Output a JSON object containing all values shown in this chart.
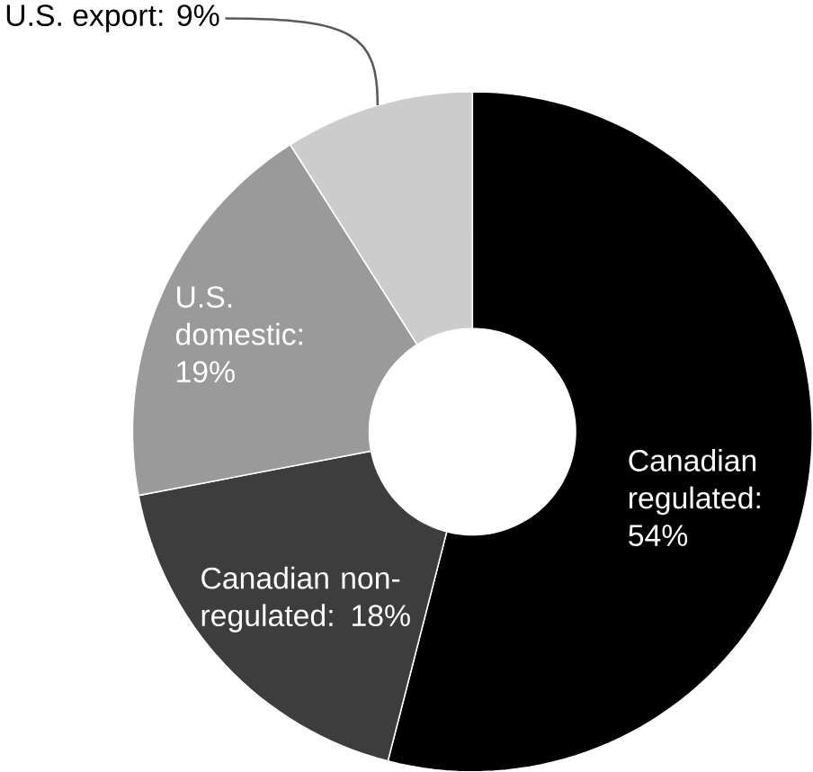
{
  "chart_data": {
    "type": "donut",
    "categories": [
      "Canadian regulated: 54%",
      "Canadian non-regulated: 18%",
      "U.S. domestic: 19%",
      "U.S. export: 9%"
    ],
    "values": [
      54,
      18,
      19,
      9
    ],
    "colors": [
      "#000000",
      "#3d3d3d",
      "#9a9a9a",
      "#cccccc"
    ]
  }
}
